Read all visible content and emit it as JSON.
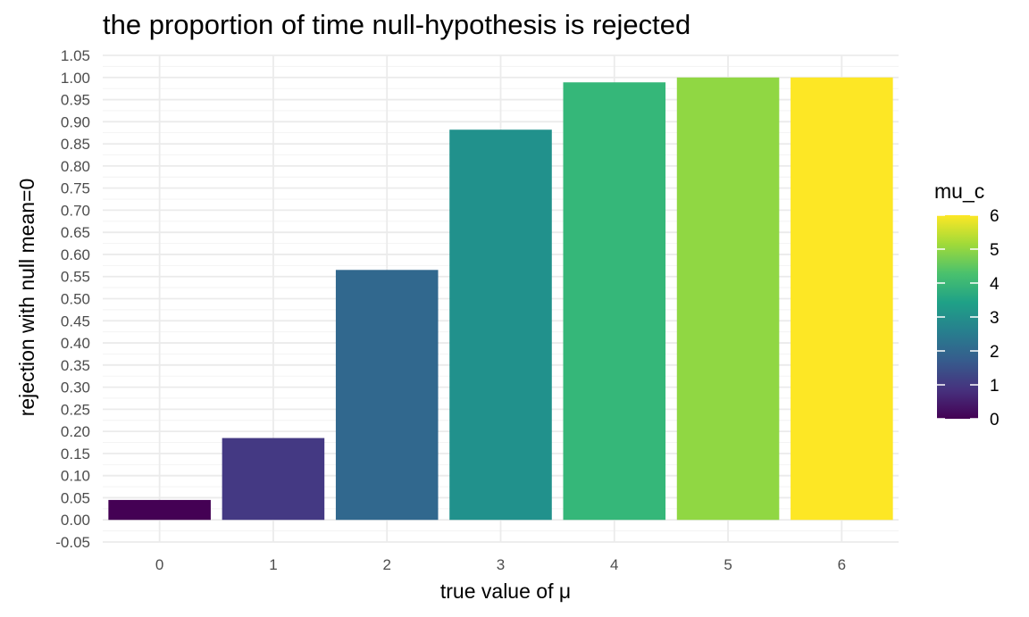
{
  "chart_data": {
    "type": "bar",
    "title": "the proportion of time null-hypothesis is rejected",
    "xlabel": "true value of μ",
    "ylabel": "rejection with null mean=0",
    "categories": [
      "0",
      "1",
      "2",
      "3",
      "4",
      "5",
      "6"
    ],
    "values": [
      0.045,
      0.185,
      0.565,
      0.882,
      0.989,
      1.0,
      1.0
    ],
    "ylim": [
      -0.05,
      1.05
    ],
    "yticks": [
      "-0.05",
      "0.00",
      "0.05",
      "0.10",
      "0.15",
      "0.20",
      "0.25",
      "0.30",
      "0.35",
      "0.40",
      "0.45",
      "0.50",
      "0.55",
      "0.60",
      "0.65",
      "0.70",
      "0.75",
      "0.80",
      "0.85",
      "0.90",
      "0.95",
      "1.00",
      "1.05"
    ],
    "grid": true,
    "legend": {
      "title": "mu_c",
      "placement": "right",
      "range": [
        0,
        6
      ],
      "ticks": [
        "0",
        "1",
        "2",
        "3",
        "4",
        "5",
        "6"
      ]
    },
    "colors": [
      "#440154",
      "#443983",
      "#31688e",
      "#21918c",
      "#35b779",
      "#90d743",
      "#fde725"
    ],
    "gradient_colors": [
      "#440154",
      "#46327e",
      "#365c8d",
      "#277f8e",
      "#1fa187",
      "#4ac16d",
      "#a0da39",
      "#fde725"
    ]
  }
}
